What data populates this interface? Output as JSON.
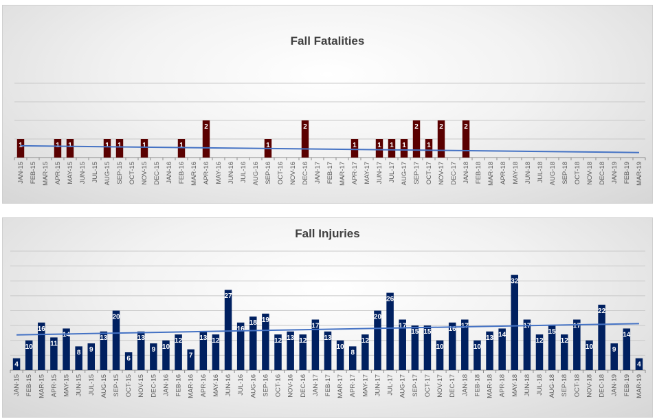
{
  "chart_data": [
    {
      "type": "bar",
      "title": "Fall Fatalities",
      "bar_color": "#5a0000",
      "trend_color": "#4472c4",
      "ylim": [
        0,
        4
      ],
      "trendline": true,
      "categories": [
        "JAN-15",
        "FEB-15",
        "MAR-15",
        "APR-15",
        "MAY-15",
        "JUN-15",
        "JUL-15",
        "AUG-15",
        "SEP-15",
        "OCT-15",
        "NOV-15",
        "DEC-15",
        "JAN-16",
        "FEB-16",
        "MAR-16",
        "APR-16",
        "MAY-16",
        "JUN-16",
        "JUL-16",
        "AUG-16",
        "SEP-16",
        "OCT-16",
        "NOV-16",
        "DEC-16",
        "JAN-17",
        "FEB-17",
        "MAR-17",
        "APR-17",
        "MAY-17",
        "JUN-17",
        "JUL-17",
        "AUG-17",
        "SEP-17",
        "OCT-17",
        "NOV-17",
        "DEC-17",
        "JAN-18",
        "FEB-18",
        "MAR-18",
        "APR-18",
        "MAY-18",
        "JUN-18",
        "JUL-18",
        "AUG-18",
        "SEP-18",
        "OCT-18",
        "NOV-18",
        "DEC-18",
        "JAN-19",
        "FEB-19",
        "MAR-19"
      ],
      "values": [
        1,
        0,
        0,
        1,
        1,
        0,
        0,
        1,
        1,
        0,
        1,
        0,
        0,
        1,
        0,
        2,
        0,
        0,
        0,
        0,
        1,
        0,
        0,
        2,
        0,
        0,
        0,
        1,
        0,
        1,
        1,
        1,
        2,
        1,
        2,
        0,
        2,
        0,
        0,
        0,
        0,
        0,
        0,
        0,
        0,
        0,
        0,
        0,
        0,
        0,
        0
      ]
    },
    {
      "type": "bar",
      "title": "Fall Injuries",
      "bar_color": "#002060",
      "trend_color": "#4472c4",
      "ylim": [
        0,
        40
      ],
      "trendline": true,
      "categories": [
        "JAN-15",
        "FEB-15",
        "MAR-15",
        "APR-15",
        "MAY-15",
        "JUN-15",
        "JUL-15",
        "AUG-15",
        "SEP-15",
        "OCT-15",
        "NOV-15",
        "DEC-15",
        "JAN-16",
        "FEB-16",
        "MAR-16",
        "APR-16",
        "MAY-16",
        "JUN-16",
        "JUL-16",
        "AUG-16",
        "SEP-16",
        "OCT-16",
        "NOV-16",
        "DEC-16",
        "JAN-17",
        "FEB-17",
        "MAR-17",
        "APR-17",
        "MAY-17",
        "JUN-17",
        "JUL-17",
        "AUG-17",
        "SEP-17",
        "OCT-17",
        "NOV-17",
        "DEC-17",
        "JAN-18",
        "FEB-18",
        "MAR-18",
        "APR-18",
        "MAY-18",
        "JUN-18",
        "JUL-18",
        "AUG-18",
        "SEP-18",
        "OCT-18",
        "NOV-18",
        "DEC-18",
        "JAN-19",
        "FEB-19",
        "MAR-19"
      ],
      "values": [
        4,
        10,
        16,
        11,
        14,
        8,
        9,
        13,
        20,
        6,
        13,
        9,
        10,
        12,
        7,
        13,
        12,
        27,
        16,
        18,
        19,
        12,
        13,
        12,
        17,
        13,
        10,
        8,
        12,
        20,
        26,
        17,
        15,
        15,
        10,
        16,
        17,
        10,
        13,
        14,
        32,
        17,
        12,
        15,
        12,
        17,
        10,
        22,
        9,
        14,
        4
      ]
    }
  ]
}
